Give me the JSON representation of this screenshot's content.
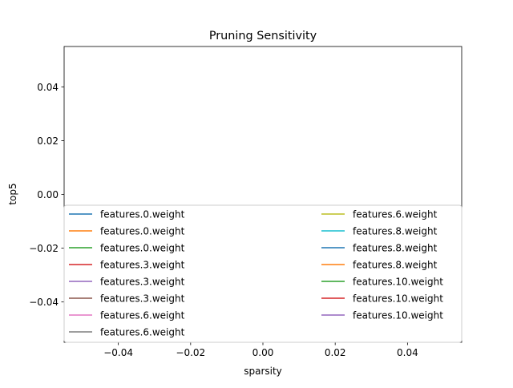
{
  "chart_data": {
    "type": "line",
    "title": "Pruning Sensitivity",
    "xlabel": "sparsity",
    "ylabel": "top5",
    "xlim": [
      -0.055,
      0.055
    ],
    "ylim": [
      -0.055,
      0.055
    ],
    "x_ticks": [
      -0.04,
      -0.02,
      0.0,
      0.02,
      0.04
    ],
    "x_tick_labels": [
      "−0.04",
      "−0.02",
      "0.00",
      "0.02",
      "0.04"
    ],
    "y_ticks": [
      0.04,
      0.02,
      0.0,
      -0.02,
      -0.04
    ],
    "y_tick_labels": [
      "0.04",
      "0.02",
      "0.00",
      "−0.02",
      "−0.04"
    ],
    "grid": false,
    "legend_placement": "lower center, two columns",
    "series": [
      {
        "name": "features.0.weight",
        "color": "#1f77b4",
        "x": [],
        "y": []
      },
      {
        "name": "features.0.weight",
        "color": "#ff7f0e",
        "x": [],
        "y": []
      },
      {
        "name": "features.0.weight",
        "color": "#2ca02c",
        "x": [],
        "y": []
      },
      {
        "name": "features.3.weight",
        "color": "#d62728",
        "x": [],
        "y": []
      },
      {
        "name": "features.3.weight",
        "color": "#9467bd",
        "x": [],
        "y": []
      },
      {
        "name": "features.3.weight",
        "color": "#8c564b",
        "x": [],
        "y": []
      },
      {
        "name": "features.6.weight",
        "color": "#e377c2",
        "x": [],
        "y": []
      },
      {
        "name": "features.6.weight",
        "color": "#7f7f7f",
        "x": [],
        "y": []
      },
      {
        "name": "features.6.weight",
        "color": "#bcbd22",
        "x": [],
        "y": []
      },
      {
        "name": "features.8.weight",
        "color": "#17becf",
        "x": [],
        "y": []
      },
      {
        "name": "features.8.weight",
        "color": "#1f77b4",
        "x": [],
        "y": []
      },
      {
        "name": "features.8.weight",
        "color": "#ff7f0e",
        "x": [],
        "y": []
      },
      {
        "name": "features.10.weight",
        "color": "#2ca02c",
        "x": [],
        "y": []
      },
      {
        "name": "features.10.weight",
        "color": "#d62728",
        "x": [],
        "y": []
      },
      {
        "name": "features.10.weight",
        "color": "#9467bd",
        "x": [],
        "y": []
      }
    ]
  }
}
